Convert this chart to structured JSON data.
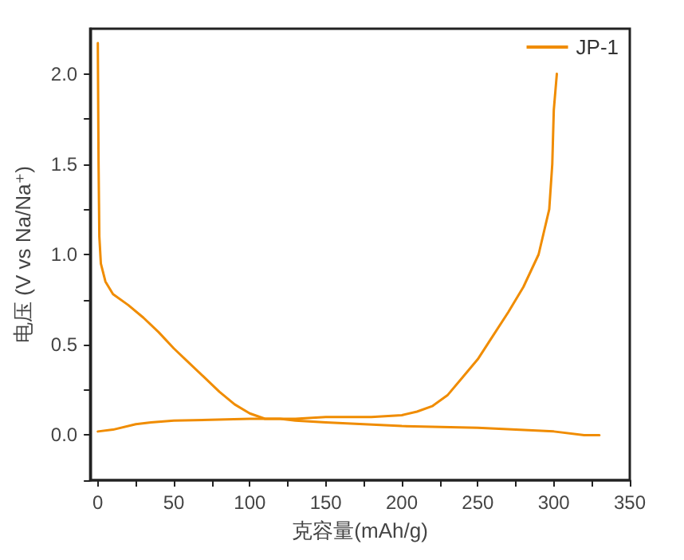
{
  "chart_data": {
    "type": "line",
    "xlabel": "克容量(mAh/g)",
    "ylabel": "电压 (V vs Na/Na⁺)",
    "xlim": [
      -5,
      350
    ],
    "ylim": [
      -0.25,
      2.25
    ],
    "xticks": [
      0,
      {
        "value": 25,
        "label": null
      },
      50,
      {
        "value": 75,
        "label": null
      },
      100,
      {
        "value": 125,
        "label": null
      },
      150,
      {
        "value": 175,
        "label": null
      },
      200,
      {
        "value": 225,
        "label": null
      },
      250,
      {
        "value": 275,
        "label": null
      },
      300,
      {
        "value": 325,
        "label": null
      },
      350
    ],
    "yticks": [
      {
        "value": -0.25,
        "label": null
      },
      {
        "value": 0,
        "label": "0.0"
      },
      {
        "value": 0.25,
        "label": null
      },
      {
        "value": 0.5,
        "label": "0.5"
      },
      {
        "value": 0.75,
        "label": null
      },
      {
        "value": 1,
        "label": "1.0"
      },
      {
        "value": 1.25,
        "label": null
      },
      {
        "value": 1.5,
        "label": "1.5"
      },
      {
        "value": 1.75,
        "label": null
      },
      {
        "value": 2,
        "label": "2.0"
      }
    ],
    "series": [
      {
        "name": "JP-1",
        "color": "#f08c00",
        "x": [
          0,
          0.5,
          1,
          2,
          5,
          10,
          20,
          30,
          40,
          50,
          60,
          70,
          80,
          90,
          100,
          110,
          120,
          130,
          150,
          200,
          250,
          300,
          320,
          330
        ],
        "values": [
          2.17,
          1.5,
          1.1,
          0.95,
          0.85,
          0.78,
          0.72,
          0.65,
          0.57,
          0.48,
          0.4,
          0.32,
          0.24,
          0.17,
          0.12,
          0.09,
          0.09,
          0.08,
          0.07,
          0.05,
          0.04,
          0.02,
          0,
          0
        ]
      },
      {
        "color": "#f08c00",
        "x": [
          0,
          10,
          25,
          35,
          50,
          100,
          130,
          150,
          180,
          200,
          210,
          220,
          230,
          240,
          250,
          260,
          270,
          280,
          290,
          297,
          299,
          300,
          302
        ],
        "values": [
          0.02,
          0.03,
          0.06,
          0.07,
          0.08,
          0.09,
          0.09,
          0.1,
          0.1,
          0.11,
          0.13,
          0.16,
          0.22,
          0.32,
          0.42,
          0.55,
          0.68,
          0.82,
          1.0,
          1.25,
          1.5,
          1.8,
          2.0
        ]
      }
    ],
    "legend": "top right",
    "grid": false,
    "marker": "none",
    "line_style": "solid"
  }
}
